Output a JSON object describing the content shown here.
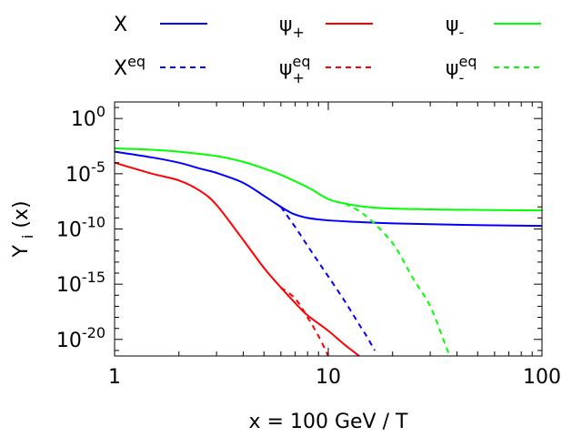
{
  "chart_data": {
    "type": "line",
    "title": "",
    "xlabel": "x = 100 GeV / T",
    "ylabel": {
      "base": "Y",
      "sub": "i",
      "rest": " (x)"
    },
    "x_scale": "log",
    "y_scale": "log",
    "xlim": [
      1,
      100
    ],
    "ylim": [
      3.16e-22,
      31.6
    ],
    "x_ticks": [
      {
        "value": 1,
        "label": "1"
      },
      {
        "value": 10,
        "label": "10"
      },
      {
        "value": 100,
        "label": "100"
      }
    ],
    "y_ticks": [
      {
        "value": 1,
        "base": "10",
        "exp": "0"
      },
      {
        "value": 1e-05,
        "base": "10",
        "exp": "-5"
      },
      {
        "value": 1e-10,
        "base": "10",
        "exp": "-10"
      },
      {
        "value": 1e-15,
        "base": "10",
        "exp": "-15"
      },
      {
        "value": 1e-20,
        "base": "10",
        "exp": "-20"
      }
    ],
    "grid": false,
    "legend_position": "top",
    "series": [
      {
        "name": "X",
        "legend_base": "X",
        "legend_sub": "",
        "legend_sup": "",
        "color": "#0000ff",
        "dash": "solid",
        "points": [
          [
            1,
            0.001
          ],
          [
            1.5,
            0.0003
          ],
          [
            2,
            0.0001
          ],
          [
            2.5,
            3e-05
          ],
          [
            3,
            1.2e-05
          ],
          [
            4,
            1.5e-06
          ],
          [
            5,
            1e-07
          ],
          [
            5.5,
            3e-08
          ],
          [
            6,
            1e-08
          ],
          [
            6.5,
            4e-09
          ],
          [
            7,
            2e-09
          ],
          [
            8,
            1e-09
          ],
          [
            10,
            6e-10
          ],
          [
            15,
            4e-10
          ],
          [
            20,
            3.2e-10
          ],
          [
            40,
            2.4e-10
          ],
          [
            100,
            1.9e-10
          ]
        ]
      },
      {
        "name": "X_eq",
        "legend_base": "X",
        "legend_sub": "",
        "legend_sup": "eq",
        "color": "#0000ff",
        "dash": "dashed",
        "points": [
          [
            6,
            1e-08
          ],
          [
            7,
            1.5e-10
          ],
          [
            8,
            3e-12
          ],
          [
            9,
            1e-13
          ],
          [
            10,
            5e-15
          ],
          [
            12,
            2.5e-17
          ],
          [
            14,
            2e-19
          ],
          [
            15,
            2.5e-20
          ],
          [
            16.5,
            1e-21
          ]
        ]
      },
      {
        "name": "psi_plus",
        "legend_base": "ψ",
        "legend_sub": "+",
        "legend_sup": "",
        "color": "#ff0000",
        "dash": "solid",
        "points": [
          [
            1,
            0.0001
          ],
          [
            1.5,
            1e-05
          ],
          [
            2,
            2.5e-06
          ],
          [
            2.5,
            3e-07
          ],
          [
            3,
            1.5e-08
          ],
          [
            4,
            1e-11
          ],
          [
            5,
            3e-14
          ],
          [
            6,
            5e-16
          ],
          [
            7,
            2e-17
          ],
          [
            8,
            1.5e-18
          ],
          [
            10,
            6e-20
          ],
          [
            12,
            3e-21
          ],
          [
            14,
            3e-22
          ]
        ]
      },
      {
        "name": "psi_plus_eq",
        "legend_base": "ψ",
        "legend_sub": "+",
        "legend_sup": "eq",
        "color": "#ff0000",
        "dash": "dashed",
        "points": [
          [
            6,
            5e-16
          ],
          [
            7,
            5e-17
          ],
          [
            8,
            1e-18
          ],
          [
            9,
            2e-20
          ],
          [
            10,
            3.2e-22
          ]
        ]
      },
      {
        "name": "psi_minus",
        "legend_base": "ψ",
        "legend_sub": "-",
        "legend_sup": "",
        "color": "#00ff00",
        "dash": "solid",
        "points": [
          [
            1,
            0.002
          ],
          [
            1.5,
            0.0015
          ],
          [
            2,
            0.001
          ],
          [
            3,
            0.0004
          ],
          [
            4,
            0.00012
          ],
          [
            5,
            3e-05
          ],
          [
            6,
            8e-06
          ],
          [
            8,
            6e-07
          ],
          [
            10,
            5e-08
          ],
          [
            12,
            2e-08
          ],
          [
            15,
            1e-08
          ],
          [
            20,
            7e-09
          ],
          [
            40,
            5.5e-09
          ],
          [
            100,
            4.8e-09
          ]
        ]
      },
      {
        "name": "psi_minus_eq",
        "legend_base": "ψ",
        "legend_sub": "-",
        "legend_sup": "eq",
        "color": "#00ff00",
        "dash": "dashed",
        "points": [
          [
            12,
            2e-08
          ],
          [
            15,
            1.5e-09
          ],
          [
            20,
            5e-12
          ],
          [
            25,
            3e-15
          ],
          [
            30,
            1e-17
          ],
          [
            35,
            5e-21
          ],
          [
            37,
            3.2e-22
          ]
        ]
      }
    ]
  }
}
